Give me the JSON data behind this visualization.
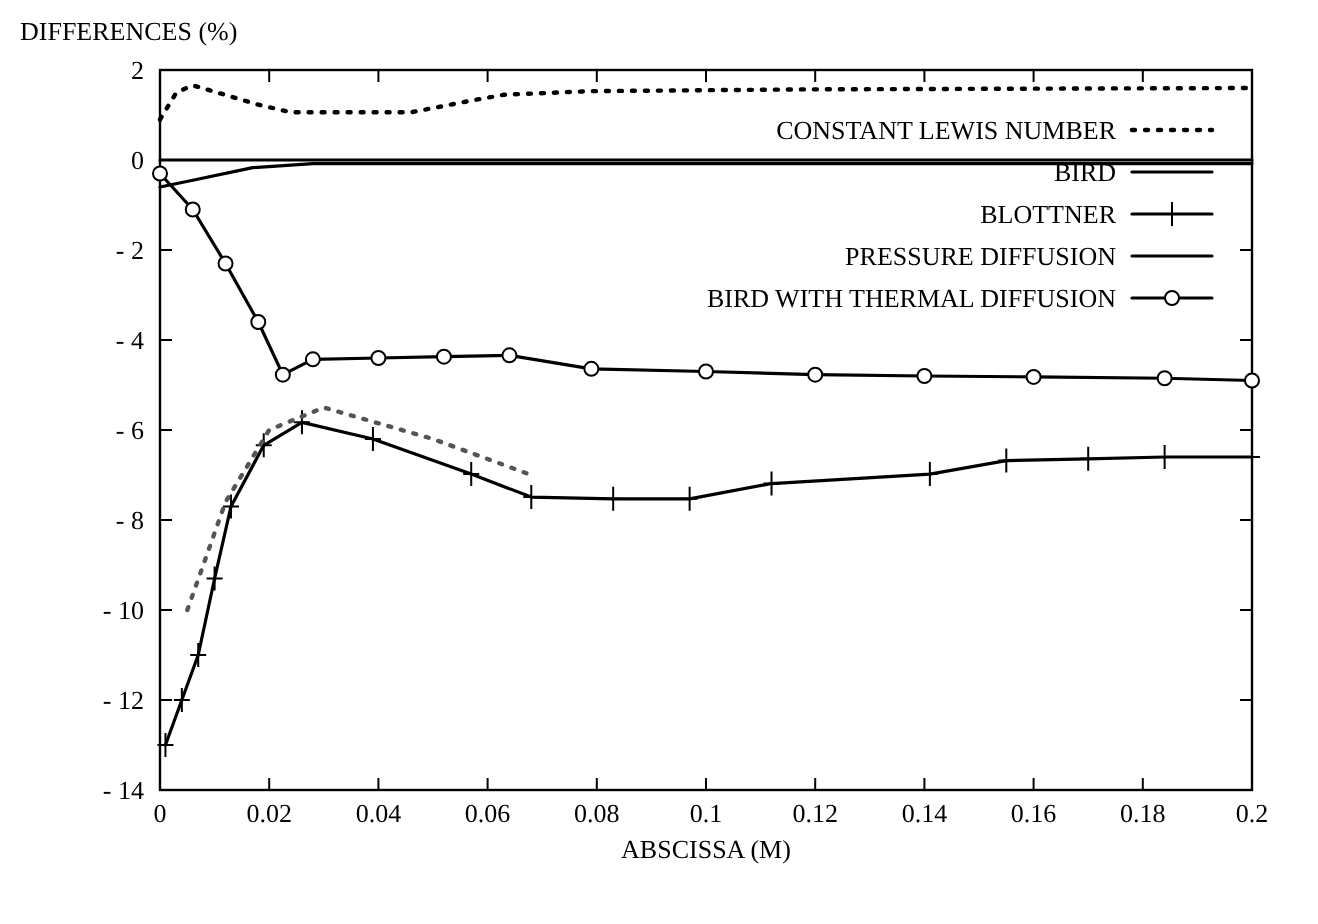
{
  "chart_data": {
    "type": "line",
    "ylabel": "DIFFERENCES (%)",
    "xlabel": "ABSCISSA (M)",
    "xlim": [
      0,
      0.2
    ],
    "xticks": [
      0,
      0.02,
      0.04,
      0.06,
      0.08,
      0.1,
      0.12,
      0.14,
      0.16,
      0.18,
      0.2
    ],
    "ylim": [
      -14,
      2
    ],
    "yticks": [
      2,
      0,
      {
        "value": -2,
        "label": "- 2"
      },
      {
        "value": -4,
        "label": "- 4"
      },
      {
        "value": -6,
        "label": "- 6"
      },
      {
        "value": -8,
        "label": "- 8"
      },
      {
        "value": -10,
        "label": "- 10"
      },
      {
        "value": -12,
        "label": "- 12"
      },
      {
        "value": -14,
        "label": "- 14"
      }
    ],
    "grid": false,
    "legend": "top right",
    "series": [
      {
        "name": "CONSTANT LEWIS NUMBER",
        "color": "#000000",
        "line_style": "dotted",
        "marker": "none",
        "x": [
          0,
          0.003,
          0.006,
          0.018,
          0.024,
          0.046,
          0.057,
          0.063,
          0.079,
          0.119,
          0.2
        ],
        "values": [
          0.9,
          1.5,
          1.66,
          1.23,
          1.06,
          1.06,
          1.32,
          1.45,
          1.53,
          1.57,
          1.6
        ]
      },
      {
        "name": "BIRD",
        "color": "#000000",
        "line_style": "solid",
        "marker": "none",
        "x": [
          0,
          0.006,
          0.017,
          0.028,
          0.2
        ],
        "values": [
          -0.6,
          -0.45,
          -0.17,
          -0.08,
          -0.08
        ]
      },
      {
        "name": "BLOTTNER",
        "color": "#000000",
        "line_style": "solid",
        "marker": "cross",
        "x": [
          0.001,
          0.004,
          0.007,
          0.01,
          0.013,
          0.019,
          0.026,
          0.039,
          0.057,
          0.068,
          0.083,
          0.097,
          0.112,
          0.141,
          0.155,
          0.17,
          0.184,
          0.2
        ],
        "values": [
          -13,
          -12,
          -11,
          -9.3,
          -7.7,
          -6.34,
          -5.83,
          -6.2,
          -6.98,
          -7.49,
          -7.53,
          -7.53,
          -7.19,
          -6.98,
          -6.68,
          -6.64,
          -6.6,
          -6.6
        ]
      },
      {
        "name": "PRESSURE DIFFUSION",
        "color": "#000000",
        "line_style": "solid",
        "marker": "none",
        "x": [
          0,
          0.2
        ],
        "values": [
          0,
          0
        ]
      },
      {
        "name": "BIRD WITH THERMAL DIFFUSION",
        "color": "#000000",
        "line_style": "solid",
        "marker": "circle",
        "x": [
          0,
          0.006,
          0.012,
          0.018,
          0.0225,
          0.028,
          0.04,
          0.052,
          0.064,
          0.079,
          0.1,
          0.12,
          0.14,
          0.16,
          0.184,
          0.2
        ],
        "values": [
          -0.3,
          -1.1,
          -2.3,
          -3.6,
          -4.77,
          -4.43,
          -4.4,
          -4.37,
          -4.34,
          -4.64,
          -4.7,
          -4.77,
          -4.8,
          -4.82,
          -4.85,
          -4.9
        ]
      },
      {
        "color": "#555555",
        "line_style": "dotted",
        "marker": "none",
        "x": [
          0.005,
          0.012,
          0.02,
          0.03,
          0.05,
          0.068
        ],
        "values": [
          -10,
          -7.6,
          -6,
          -5.5,
          -6.2,
          -7
        ]
      }
    ]
  }
}
